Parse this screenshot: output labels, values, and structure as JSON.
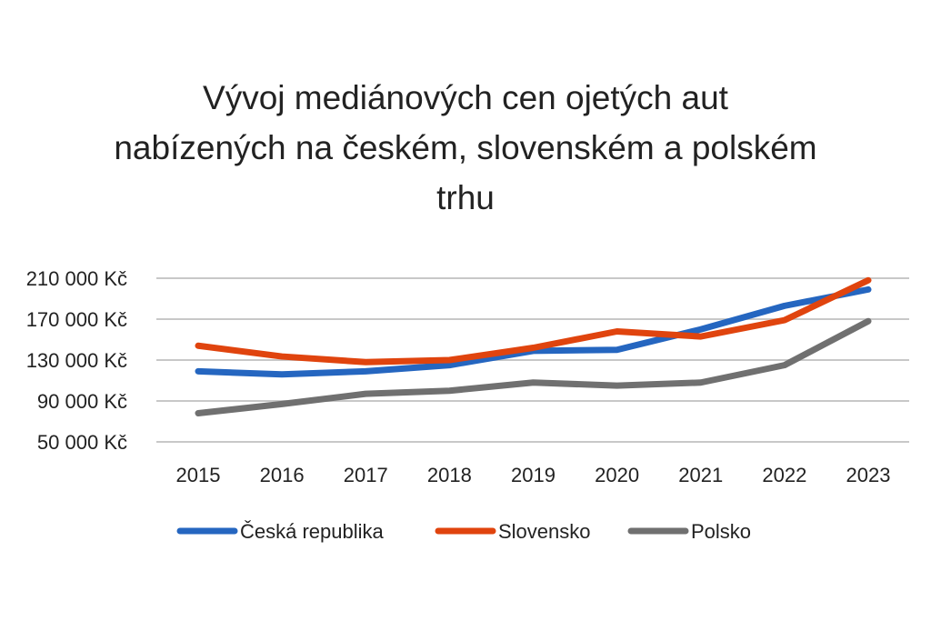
{
  "chart_data": {
    "type": "line",
    "title_lines": [
      "Vývoj mediánových cen ojetých aut",
      "nabízených na českém, slovenském a polském",
      "trhu"
    ],
    "categories": [
      "2015",
      "2016",
      "2017",
      "2018",
      "2019",
      "2020",
      "2021",
      "2022",
      "2023"
    ],
    "yticks": [
      50000,
      90000,
      130000,
      170000,
      210000
    ],
    "ytick_labels": [
      "50 000 Kč",
      "90 000 Kč",
      "130 000 Kč",
      "170 000 Kč",
      "210 000 Kč"
    ],
    "ylim": [
      50000,
      210000
    ],
    "grid": true,
    "legend_position": "bottom",
    "series": [
      {
        "name": "Česká republika",
        "color": "#2566c0",
        "values": [
          119000,
          116000,
          119000,
          125000,
          139000,
          140000,
          160000,
          183000,
          199000
        ]
      },
      {
        "name": "Slovensko",
        "color": "#e0440e",
        "values": [
          144000,
          133500,
          128000,
          130000,
          142000,
          158000,
          153000,
          169000,
          208000
        ]
      },
      {
        "name": "Polsko",
        "color": "#707070",
        "values": [
          78000,
          87000,
          97000,
          100000,
          108000,
          105000,
          108000,
          125000,
          168000
        ]
      }
    ]
  }
}
